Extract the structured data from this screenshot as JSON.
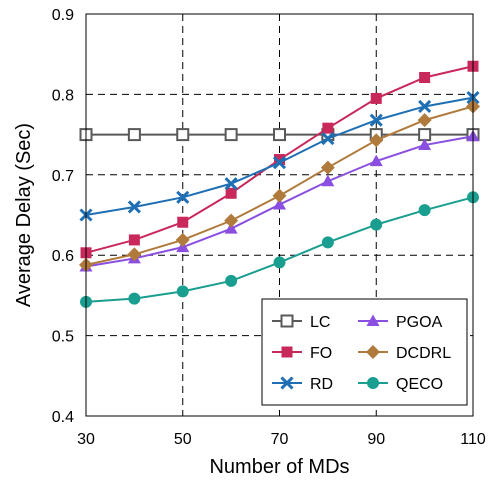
{
  "chart_data": {
    "type": "line",
    "xlabel": "Number of MDs",
    "ylabel": "Average Delay (Sec)",
    "xlim": [
      30,
      110
    ],
    "ylim": [
      0.4,
      0.9
    ],
    "x_ticks": [
      "30",
      "50",
      "70",
      "90",
      "110"
    ],
    "y_ticks": [
      "0.4",
      "0.5",
      "0.6",
      "0.7",
      "0.8",
      "0.9"
    ],
    "grid": "dashed",
    "legend_position": "bottom-right",
    "x": [
      30,
      40,
      50,
      60,
      70,
      80,
      90,
      100,
      110
    ],
    "series": [
      {
        "name": "LC",
        "color": "#595959",
        "marker": "square-open",
        "values": [
          0.75,
          0.75,
          0.75,
          0.75,
          0.75,
          0.75,
          0.75,
          0.75,
          0.75
        ]
      },
      {
        "name": "FO",
        "color": "#C8285A",
        "marker": "square",
        "values": [
          0.603,
          0.619,
          0.641,
          0.677,
          0.719,
          0.758,
          0.795,
          0.821,
          0.835
        ]
      },
      {
        "name": "RD",
        "color": "#1F6FB4",
        "marker": "x",
        "values": [
          0.65,
          0.66,
          0.672,
          0.689,
          0.715,
          0.745,
          0.768,
          0.785,
          0.796
        ]
      },
      {
        "name": "PGOA",
        "color": "#8A4FE0",
        "marker": "triangle",
        "values": [
          0.586,
          0.596,
          0.61,
          0.633,
          0.663,
          0.692,
          0.717,
          0.737,
          0.748
        ]
      },
      {
        "name": "DCDRL",
        "color": "#B07A3C",
        "marker": "diamond",
        "values": [
          0.588,
          0.601,
          0.619,
          0.643,
          0.674,
          0.709,
          0.743,
          0.768,
          0.785
        ]
      },
      {
        "name": "QECO",
        "color": "#1A9E8F",
        "marker": "circle",
        "values": [
          0.542,
          0.546,
          0.555,
          0.568,
          0.591,
          0.616,
          0.638,
          0.656,
          0.672
        ]
      }
    ]
  }
}
